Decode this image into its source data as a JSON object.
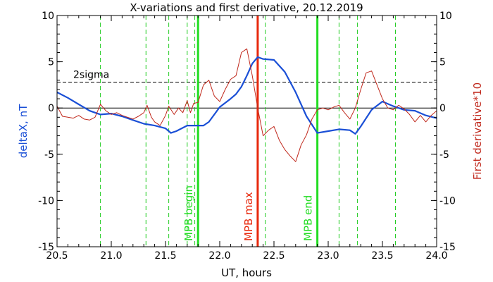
{
  "chart_data": {
    "type": "line",
    "title": "X-variations and first derivative, 20.12.2019",
    "xlabel": "UT, hours",
    "ylabel_left": "deltaX, nT",
    "ylabel_right": "First derivative*10",
    "xlim": [
      20.5,
      24.0
    ],
    "ylim_left": [
      -15,
      10
    ],
    "ylim_right": [
      -15,
      10
    ],
    "x_ticks": [
      "20.5",
      "21.0",
      "21.5",
      "22.0",
      "22.5",
      "23.0",
      "23.5",
      "24.0"
    ],
    "x_tick_values": [
      20.5,
      21.0,
      21.5,
      22.0,
      22.5,
      23.0,
      23.5,
      24.0
    ],
    "y_ticks": [
      "10",
      "5",
      "0",
      "-5",
      "-10",
      "-15"
    ],
    "y_tick_values": [
      10,
      5,
      0,
      -5,
      -10,
      -15
    ],
    "sigma_label": "2sigma",
    "sigma_value": 2.8,
    "zero_line": 0,
    "colors": {
      "deltaX": "#1a4fd6",
      "derivative": "#c0281c",
      "green": "#22dd22",
      "red": "#e8280c",
      "dashed_green": "#22cc22"
    },
    "dashed_lines": [
      20.9,
      21.32,
      21.53,
      21.7,
      21.77,
      22.42,
      23.1,
      23.27,
      23.62
    ],
    "markers": [
      {
        "label": "MPB begin",
        "x": 21.8,
        "color": "green"
      },
      {
        "label": "MPB max",
        "x": 22.35,
        "color": "red"
      },
      {
        "label": "MPB end",
        "x": 22.9,
        "color": "green"
      }
    ],
    "series": [
      {
        "name": "deltaX",
        "axis": "left",
        "x": [
          20.5,
          20.6,
          20.7,
          20.8,
          20.9,
          21.0,
          21.1,
          21.2,
          21.3,
          21.4,
          21.5,
          21.55,
          21.6,
          21.7,
          21.8,
          21.85,
          21.9,
          22.0,
          22.1,
          22.15,
          22.2,
          22.25,
          22.3,
          22.35,
          22.4,
          22.5,
          22.6,
          22.7,
          22.8,
          22.9,
          23.0,
          23.1,
          23.2,
          23.25,
          23.3,
          23.4,
          23.5,
          23.6,
          23.7,
          23.8,
          23.9,
          24.0
        ],
        "values": [
          1.7,
          1.1,
          0.4,
          -0.3,
          -0.7,
          -0.6,
          -0.9,
          -1.3,
          -1.7,
          -1.9,
          -2.2,
          -2.7,
          -2.5,
          -1.9,
          -1.9,
          -1.9,
          -1.5,
          0.1,
          1.0,
          1.5,
          2.3,
          3.5,
          4.8,
          5.5,
          5.3,
          5.2,
          3.9,
          1.7,
          -0.9,
          -2.7,
          -2.5,
          -2.3,
          -2.4,
          -2.8,
          -2.0,
          -0.2,
          0.7,
          0.2,
          -0.2,
          -0.3,
          -0.8,
          -1.1
        ]
      },
      {
        "name": "First derivative*10",
        "axis": "right",
        "x": [
          20.5,
          20.55,
          20.6,
          20.65,
          20.7,
          20.75,
          20.8,
          20.85,
          20.9,
          20.95,
          21.0,
          21.05,
          21.1,
          21.15,
          21.2,
          21.25,
          21.3,
          21.33,
          21.37,
          21.4,
          21.45,
          21.5,
          21.53,
          21.58,
          21.62,
          21.66,
          21.7,
          21.73,
          21.76,
          21.8,
          21.85,
          21.9,
          21.95,
          22.0,
          22.05,
          22.1,
          22.15,
          22.2,
          22.25,
          22.3,
          22.35,
          22.4,
          22.45,
          22.5,
          22.55,
          22.6,
          22.65,
          22.7,
          22.75,
          22.8,
          22.85,
          22.9,
          22.95,
          23.0,
          23.05,
          23.1,
          23.15,
          23.2,
          23.25,
          23.3,
          23.35,
          23.4,
          23.45,
          23.5,
          23.55,
          23.6,
          23.65,
          23.7,
          23.75,
          23.8,
          23.85,
          23.9,
          23.95,
          24.0
        ],
        "values": [
          0.2,
          -0.9,
          -1.0,
          -1.1,
          -0.8,
          -1.2,
          -1.3,
          -1.0,
          0.4,
          -0.3,
          -0.7,
          -0.5,
          -0.8,
          -1.0,
          -1.2,
          -0.9,
          -0.5,
          0.3,
          -1.0,
          -1.5,
          -1.9,
          -0.8,
          0.2,
          -0.7,
          0.0,
          -0.5,
          0.8,
          -0.5,
          0.5,
          0.6,
          2.5,
          3.0,
          1.3,
          0.7,
          2.0,
          3.1,
          3.5,
          6.0,
          6.4,
          3.5,
          0.0,
          -3.0,
          -2.4,
          -2.0,
          -3.5,
          -4.5,
          -5.2,
          -5.8,
          -4.0,
          -2.9,
          -1.2,
          -0.2,
          0.0,
          -0.2,
          0.1,
          0.3,
          -0.5,
          -1.2,
          0.0,
          2.0,
          3.8,
          4.0,
          2.5,
          1.0,
          0.0,
          -0.2,
          0.3,
          -0.1,
          -0.7,
          -1.5,
          -0.8,
          -1.5,
          -0.8,
          -0.3
        ]
      }
    ]
  }
}
